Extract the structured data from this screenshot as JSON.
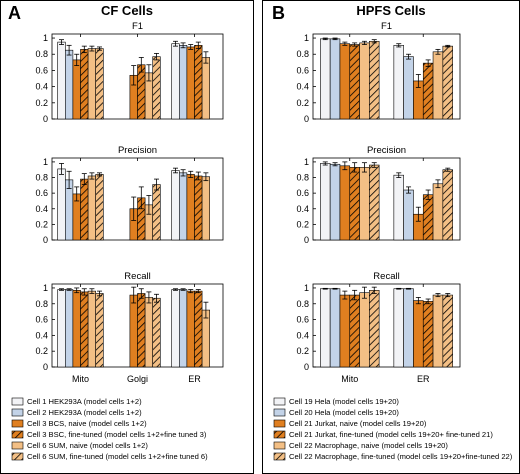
{
  "figure": {
    "panels": [
      {
        "letter": "A",
        "title": "CF Cells"
      },
      {
        "letter": "B",
        "title": "HPFS Cells"
      }
    ]
  },
  "colors": {
    "white_bar": "#f2f3f6",
    "lightblue_bar": "#c3d3e8",
    "dark_orange": "#e07f20",
    "light_orange": "#f3bf85"
  },
  "chart_data": [
    {
      "type": "bar",
      "panel": "A",
      "title": "F1",
      "categories": [
        "Mito",
        "Golgi",
        "ER"
      ],
      "ylim": [
        0,
        1.05
      ],
      "yticks": [
        "0",
        "0.2",
        "0.4",
        "0.6",
        "0.8",
        "1"
      ],
      "series": [
        {
          "name": "Cell 1 HEK293A (model cells 1+2)",
          "values": [
            0.95,
            null,
            0.93
          ],
          "errors": [
            0.03,
            null,
            0.03
          ]
        },
        {
          "name": "Cell 2 HEK293A (model cells 1+2)",
          "values": [
            0.85,
            null,
            0.91
          ],
          "errors": [
            0.06,
            null,
            0.03
          ]
        },
        {
          "name": "Cell 3 BCS, naive (model cells 1+2)",
          "values": [
            0.73,
            0.54,
            0.89
          ],
          "errors": [
            0.07,
            0.12,
            0.03
          ]
        },
        {
          "name": "Cell 3 BSC, fine-tuned (model cells 1+2+fine tuned 3)",
          "values": [
            0.86,
            0.67,
            0.91
          ],
          "errors": [
            0.04,
            0.09,
            0.04
          ]
        },
        {
          "name": "Cell 6 SUM, naive (model cells 1+2)",
          "values": [
            0.87,
            0.57,
            0.76
          ],
          "errors": [
            0.03,
            0.1,
            0.07
          ]
        },
        {
          "name": "Cell 6 SUM, fine-tuned (model cells 1+2+fine tuned 6)",
          "values": [
            0.87,
            0.77,
            null
          ],
          "errors": [
            0.02,
            0.04,
            null
          ]
        }
      ]
    },
    {
      "type": "bar",
      "panel": "A",
      "title": "Precision",
      "categories": [
        "Mito",
        "Golgi",
        "ER"
      ],
      "ylim": [
        0,
        1.05
      ],
      "yticks": [
        "0",
        "0.2",
        "0.4",
        "0.6",
        "0.8",
        "1"
      ],
      "series": [
        {
          "name": "Cell 1 HEK293A (model cells 1+2)",
          "values": [
            0.91,
            null,
            0.89
          ],
          "errors": [
            0.07,
            null,
            0.03
          ]
        },
        {
          "name": "Cell 2 HEK293A (model cells 1+2)",
          "values": [
            0.77,
            null,
            0.86
          ],
          "errors": [
            0.11,
            null,
            0.04
          ]
        },
        {
          "name": "Cell 3 BCS, naive (model cells 1+2)",
          "values": [
            0.59,
            0.4,
            0.84
          ],
          "errors": [
            0.09,
            0.15,
            0.04
          ]
        },
        {
          "name": "Cell 3 BSC, fine-tuned (model cells 1+2+fine tuned 3)",
          "values": [
            0.78,
            0.54,
            0.82
          ],
          "errors": [
            0.07,
            0.14,
            0.05
          ]
        },
        {
          "name": "Cell 6 SUM, naive (model cells 1+2)",
          "values": [
            0.82,
            0.45,
            0.81
          ],
          "errors": [
            0.04,
            0.12,
            0.05
          ]
        },
        {
          "name": "Cell 6 SUM, fine-tuned (model cells 1+2+fine tuned 6)",
          "values": [
            0.84,
            0.71,
            null
          ],
          "errors": [
            0.02,
            0.07,
            null
          ]
        }
      ]
    },
    {
      "type": "bar",
      "panel": "A",
      "title": "Recall",
      "categories": [
        "Mito",
        "Golgi",
        "ER"
      ],
      "xlabels": [
        "Mito",
        "Golgi",
        "ER"
      ],
      "ylim": [
        0,
        1.05
      ],
      "yticks": [
        "0",
        "0.2",
        "0.4",
        "0.6",
        "0.8",
        "1"
      ],
      "series": [
        {
          "name": "Cell 1 HEK293A (model cells 1+2)",
          "values": [
            0.98,
            null,
            0.98
          ],
          "errors": [
            0.01,
            null,
            0.01
          ]
        },
        {
          "name": "Cell 2 HEK293A (model cells 1+2)",
          "values": [
            0.98,
            null,
            0.98
          ],
          "errors": [
            0.01,
            null,
            0.01
          ]
        },
        {
          "name": "Cell 3 BCS, naive (model cells 1+2)",
          "values": [
            0.97,
            0.91,
            0.96
          ],
          "errors": [
            0.03,
            0.1,
            0.02
          ]
        },
        {
          "name": "Cell 3 BSC, fine-tuned (model cells 1+2+fine tuned 3)",
          "values": [
            0.95,
            0.93,
            0.96
          ],
          "errors": [
            0.04,
            0.06,
            0.02
          ]
        },
        {
          "name": "Cell 6 SUM, naive (model cells 1+2)",
          "values": [
            0.96,
            0.88,
            0.72
          ],
          "errors": [
            0.03,
            0.07,
            0.1
          ]
        },
        {
          "name": "Cell 6 SUM, fine-tuned (model cells 1+2+fine tuned 6)",
          "values": [
            0.93,
            0.87,
            null
          ],
          "errors": [
            0.03,
            0.05,
            null
          ]
        }
      ]
    },
    {
      "type": "bar",
      "panel": "B",
      "title": "F1",
      "categories": [
        "Mito",
        "ER"
      ],
      "ylim": [
        0,
        1.05
      ],
      "yticks": [
        "0",
        "0.2",
        "0.4",
        "0.6",
        "0.8",
        "1"
      ],
      "series": [
        {
          "name": "Cell 19 Hela (model cells 19+20)",
          "values": [
            0.99,
            0.91
          ],
          "errors": [
            0.01,
            0.02
          ]
        },
        {
          "name": "Cell 20 Hela (model cells 19+20)",
          "values": [
            0.99,
            0.77
          ],
          "errors": [
            0.01,
            0.03
          ]
        },
        {
          "name": "Cell 21 Jurkat, naive (model cells 19+20)",
          "values": [
            0.93,
            0.47
          ],
          "errors": [
            0.02,
            0.08
          ]
        },
        {
          "name": "Cell 21 Jurkat, fine-tuned (model cells 19+20+ fine-tuned 21)",
          "values": [
            0.92,
            0.69
          ],
          "errors": [
            0.02,
            0.04
          ]
        },
        {
          "name": "Cell 22 Macrophage, naive (model cells 19+20)",
          "values": [
            0.94,
            0.83
          ],
          "errors": [
            0.02,
            0.03
          ]
        },
        {
          "name": "Cell 22 Macrophage, fine-tuned (model cells 19+20+fine-tuned 22)",
          "values": [
            0.96,
            0.9
          ],
          "errors": [
            0.02,
            0.01
          ]
        }
      ]
    },
    {
      "type": "bar",
      "panel": "B",
      "title": "Precision",
      "categories": [
        "Mito",
        "ER"
      ],
      "ylim": [
        0,
        1.05
      ],
      "yticks": [
        "0",
        "0.2",
        "0.4",
        "0.6",
        "0.8",
        "1"
      ],
      "series": [
        {
          "name": "Cell 19 Hela (model cells 19+20)",
          "values": [
            0.98,
            0.83
          ],
          "errors": [
            0.02,
            0.03
          ]
        },
        {
          "name": "Cell 20 Hela (model cells 19+20)",
          "values": [
            0.97,
            0.64
          ],
          "errors": [
            0.02,
            0.04
          ]
        },
        {
          "name": "Cell 21 Jurkat, naive (model cells 19+20)",
          "values": [
            0.95,
            0.33
          ],
          "errors": [
            0.05,
            0.09
          ]
        },
        {
          "name": "Cell 21 Jurkat, fine-tuned (model cells 19+20+ fine-tuned 21)",
          "values": [
            0.93,
            0.58
          ],
          "errors": [
            0.06,
            0.06
          ]
        },
        {
          "name": "Cell 22 Macrophage, naive (model cells 19+20)",
          "values": [
            0.93,
            0.72
          ],
          "errors": [
            0.06,
            0.05
          ]
        },
        {
          "name": "Cell 22 Macrophage, fine-tuned (model cells 19+20+fine-tuned 22)",
          "values": [
            0.96,
            0.9
          ],
          "errors": [
            0.03,
            0.02
          ]
        }
      ]
    },
    {
      "type": "bar",
      "panel": "B",
      "title": "Recall",
      "categories": [
        "Mito",
        "ER"
      ],
      "xlabels": [
        "Mito",
        "ER"
      ],
      "ylim": [
        0,
        1.05
      ],
      "yticks": [
        "0",
        "0.2",
        "0.4",
        "0.6",
        "0.8",
        "1"
      ],
      "series": [
        {
          "name": "Cell 19 Hela (model cells 19+20)",
          "values": [
            0.99,
            0.99
          ],
          "errors": [
            0.005,
            0.005
          ]
        },
        {
          "name": "Cell 20 Hela (model cells 19+20)",
          "values": [
            0.99,
            0.99
          ],
          "errors": [
            0.005,
            0.005
          ]
        },
        {
          "name": "Cell 21 Jurkat, naive (model cells 19+20)",
          "values": [
            0.91,
            0.84
          ],
          "errors": [
            0.05,
            0.04
          ]
        },
        {
          "name": "Cell 21 Jurkat, fine-tuned (model cells 19+20+ fine-tuned 21)",
          "values": [
            0.91,
            0.83
          ],
          "errors": [
            0.06,
            0.03
          ]
        },
        {
          "name": "Cell 22 Macrophage, naive (model cells 19+20)",
          "values": [
            0.94,
            0.91
          ],
          "errors": [
            0.07,
            0.02
          ]
        },
        {
          "name": "Cell 22 Macrophage, fine-tuned (model cells 19+20+fine-tuned 22)",
          "values": [
            0.97,
            0.91
          ],
          "errors": [
            0.04,
            0.02
          ]
        }
      ]
    }
  ],
  "legends": {
    "A": [
      {
        "label": "Cell 1 HEK293A (model cells 1+2)",
        "style": "white"
      },
      {
        "label": "Cell 2 HEK293A (model cells 1+2)",
        "style": "lightblue"
      },
      {
        "label": "Cell 3 BCS, naive (model cells 1+2)",
        "style": "dark"
      },
      {
        "label": "Cell 3 BSC, fine-tuned (model cells 1+2+fine tuned 3)",
        "style": "dark-hatch"
      },
      {
        "label": "Cell 6 SUM, naive (model cells 1+2)",
        "style": "light"
      },
      {
        "label": "Cell 6 SUM, fine-tuned (model cells 1+2+fine tuned 6)",
        "style": "light-hatch"
      }
    ],
    "B": [
      {
        "label": "Cell 19 Hela (model cells 19+20)",
        "style": "white"
      },
      {
        "label": "Cell 20 Hela (model cells 19+20)",
        "style": "lightblue"
      },
      {
        "label": "Cell 21 Jurkat, naive (model cells 19+20)",
        "style": "dark"
      },
      {
        "label": "Cell 21 Jurkat, fine-tuned (model cells 19+20+ fine-tuned 21)",
        "style": "dark-hatch"
      },
      {
        "label": "Cell 22 Macrophage, naive (model cells 19+20)",
        "style": "light"
      },
      {
        "label": "Cell 22 Macrophage, fine-tuned (model cells 19+20+fine-tuned 22)",
        "style": "light-hatch"
      }
    ]
  }
}
